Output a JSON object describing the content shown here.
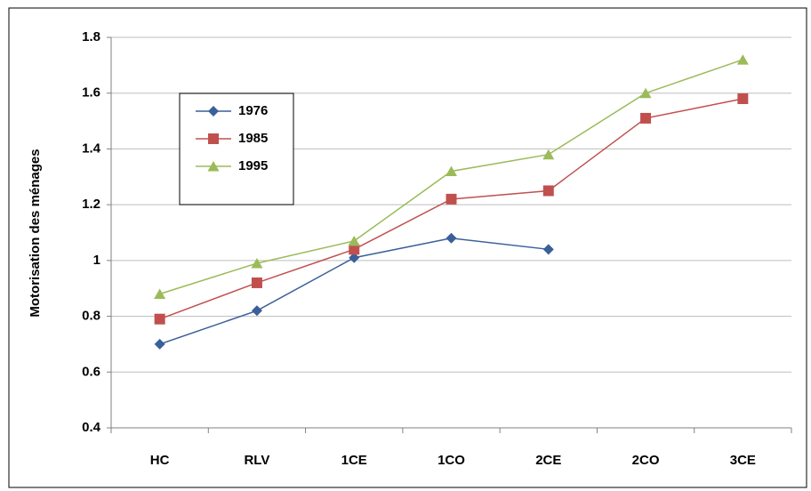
{
  "chart_data": {
    "type": "line",
    "y_label": "Motorisation des ménages",
    "categories": [
      "HC",
      "RLV",
      "1CE",
      "1CO",
      "2CE",
      "2CO",
      "3CE"
    ],
    "series": [
      {
        "name": "1976",
        "color": "#3a5f99",
        "marker": "diamond",
        "values": [
          0.7,
          0.82,
          1.01,
          1.08,
          1.04,
          null,
          null
        ]
      },
      {
        "name": "1985",
        "color": "#c0504d",
        "marker": "square",
        "values": [
          0.79,
          0.92,
          1.04,
          1.22,
          1.25,
          1.51,
          1.58
        ]
      },
      {
        "name": "1995",
        "color": "#9bbb59",
        "marker": "triangle",
        "values": [
          0.88,
          0.99,
          1.07,
          1.32,
          1.38,
          1.6,
          1.72
        ]
      }
    ],
    "ylim": [
      0.4,
      1.8
    ],
    "yticks": [
      0.4,
      0.6,
      0.8,
      1,
      1.2,
      1.4,
      1.6,
      1.8
    ],
    "grid": true,
    "legend": "upper left"
  }
}
